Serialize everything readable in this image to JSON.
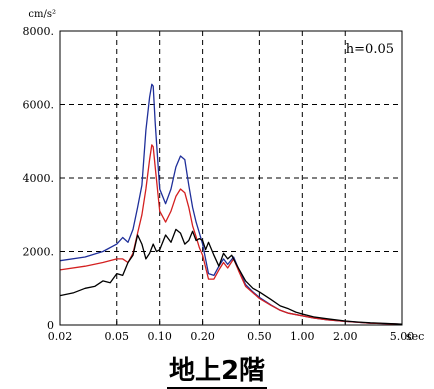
{
  "chart_data": {
    "type": "line",
    "ylabel_unit": "cm/s²",
    "xlabel_unit": "sec",
    "annotation": "h=0.05",
    "caption": "地上2階",
    "x_scale": "log",
    "xlim": [
      0.02,
      5.0
    ],
    "ylim": [
      0,
      8000
    ],
    "grid": true,
    "x_ticks": [
      {
        "v": 0.02,
        "label": "0.02"
      },
      {
        "v": 0.05,
        "label": "0.05"
      },
      {
        "v": 0.1,
        "label": "0.10"
      },
      {
        "v": 0.2,
        "label": "0.20"
      },
      {
        "v": 0.5,
        "label": "0.50"
      },
      {
        "v": 1.0,
        "label": "1.00"
      },
      {
        "v": 2.0,
        "label": "2.00"
      },
      {
        "v": 5.0,
        "label": "5.00"
      }
    ],
    "y_ticks": [
      {
        "v": 0,
        "label": "0"
      },
      {
        "v": 2000,
        "label": "2000."
      },
      {
        "v": 4000,
        "label": "4000."
      },
      {
        "v": 6000,
        "label": "6000."
      },
      {
        "v": 8000,
        "label": "8000."
      }
    ],
    "colors": {
      "series1": "#1f2f9a",
      "series2": "#d42020",
      "series3": "#000000",
      "grid": "#000000"
    },
    "series": [
      {
        "color_key": "series1",
        "points": [
          [
            0.02,
            1750
          ],
          [
            0.03,
            1850
          ],
          [
            0.04,
            2000
          ],
          [
            0.05,
            2200
          ],
          [
            0.055,
            2380
          ],
          [
            0.06,
            2250
          ],
          [
            0.065,
            2600
          ],
          [
            0.07,
            3200
          ],
          [
            0.075,
            3800
          ],
          [
            0.08,
            5300
          ],
          [
            0.085,
            6200
          ],
          [
            0.088,
            6550
          ],
          [
            0.09,
            6500
          ],
          [
            0.093,
            5500
          ],
          [
            0.1,
            3700
          ],
          [
            0.11,
            3300
          ],
          [
            0.12,
            3700
          ],
          [
            0.13,
            4300
          ],
          [
            0.14,
            4600
          ],
          [
            0.15,
            4500
          ],
          [
            0.16,
            3800
          ],
          [
            0.17,
            3200
          ],
          [
            0.18,
            2800
          ],
          [
            0.19,
            2500
          ],
          [
            0.2,
            2200
          ],
          [
            0.22,
            1400
          ],
          [
            0.24,
            1350
          ],
          [
            0.26,
            1600
          ],
          [
            0.28,
            1800
          ],
          [
            0.3,
            1650
          ],
          [
            0.33,
            1850
          ],
          [
            0.36,
            1500
          ],
          [
            0.4,
            1100
          ],
          [
            0.45,
            900
          ],
          [
            0.5,
            750
          ],
          [
            0.6,
            550
          ],
          [
            0.7,
            400
          ],
          [
            0.8,
            320
          ],
          [
            1.0,
            250
          ],
          [
            1.2,
            190
          ],
          [
            1.5,
            140
          ],
          [
            2.0,
            100
          ],
          [
            2.5,
            70
          ],
          [
            3.0,
            50
          ],
          [
            4.0,
            35
          ],
          [
            5.0,
            20
          ]
        ]
      },
      {
        "color_key": "series2",
        "points": [
          [
            0.02,
            1500
          ],
          [
            0.03,
            1600
          ],
          [
            0.04,
            1700
          ],
          [
            0.05,
            1800
          ],
          [
            0.055,
            1800
          ],
          [
            0.06,
            1700
          ],
          [
            0.065,
            1950
          ],
          [
            0.07,
            2500
          ],
          [
            0.075,
            3000
          ],
          [
            0.08,
            3700
          ],
          [
            0.085,
            4500
          ],
          [
            0.088,
            4900
          ],
          [
            0.09,
            4850
          ],
          [
            0.093,
            4300
          ],
          [
            0.1,
            3100
          ],
          [
            0.11,
            2800
          ],
          [
            0.12,
            3100
          ],
          [
            0.13,
            3500
          ],
          [
            0.14,
            3700
          ],
          [
            0.15,
            3600
          ],
          [
            0.16,
            3200
          ],
          [
            0.17,
            2700
          ],
          [
            0.18,
            2400
          ],
          [
            0.19,
            2100
          ],
          [
            0.2,
            1900
          ],
          [
            0.22,
            1250
          ],
          [
            0.24,
            1250
          ],
          [
            0.26,
            1500
          ],
          [
            0.28,
            1700
          ],
          [
            0.3,
            1550
          ],
          [
            0.33,
            1800
          ],
          [
            0.36,
            1450
          ],
          [
            0.4,
            1050
          ],
          [
            0.45,
            880
          ],
          [
            0.5,
            720
          ],
          [
            0.6,
            540
          ],
          [
            0.7,
            400
          ],
          [
            0.8,
            320
          ],
          [
            1.0,
            250
          ],
          [
            1.2,
            190
          ],
          [
            1.5,
            140
          ],
          [
            2.0,
            100
          ],
          [
            2.5,
            70
          ],
          [
            3.0,
            50
          ],
          [
            4.0,
            35
          ],
          [
            5.0,
            20
          ]
        ]
      },
      {
        "color_key": "series3",
        "points": [
          [
            0.02,
            800
          ],
          [
            0.025,
            880
          ],
          [
            0.03,
            1000
          ],
          [
            0.035,
            1050
          ],
          [
            0.04,
            1200
          ],
          [
            0.045,
            1150
          ],
          [
            0.05,
            1400
          ],
          [
            0.055,
            1350
          ],
          [
            0.06,
            1700
          ],
          [
            0.065,
            1900
          ],
          [
            0.07,
            2450
          ],
          [
            0.075,
            2200
          ],
          [
            0.08,
            1800
          ],
          [
            0.085,
            1950
          ],
          [
            0.09,
            2200
          ],
          [
            0.095,
            2000
          ],
          [
            0.1,
            2050
          ],
          [
            0.11,
            2450
          ],
          [
            0.12,
            2250
          ],
          [
            0.13,
            2600
          ],
          [
            0.14,
            2500
          ],
          [
            0.15,
            2200
          ],
          [
            0.16,
            2300
          ],
          [
            0.17,
            2550
          ],
          [
            0.18,
            2300
          ],
          [
            0.19,
            2350
          ],
          [
            0.2,
            2300
          ],
          [
            0.21,
            2050
          ],
          [
            0.22,
            2250
          ],
          [
            0.24,
            1900
          ],
          [
            0.26,
            1600
          ],
          [
            0.28,
            1950
          ],
          [
            0.3,
            1800
          ],
          [
            0.32,
            1900
          ],
          [
            0.35,
            1600
          ],
          [
            0.4,
            1200
          ],
          [
            0.45,
            1000
          ],
          [
            0.5,
            900
          ],
          [
            0.6,
            700
          ],
          [
            0.7,
            520
          ],
          [
            0.8,
            440
          ],
          [
            0.9,
            350
          ],
          [
            1.0,
            300
          ],
          [
            1.2,
            220
          ],
          [
            1.5,
            170
          ],
          [
            2.0,
            110
          ],
          [
            2.5,
            80
          ],
          [
            3.0,
            60
          ],
          [
            4.0,
            40
          ],
          [
            5.0,
            25
          ]
        ]
      }
    ]
  }
}
